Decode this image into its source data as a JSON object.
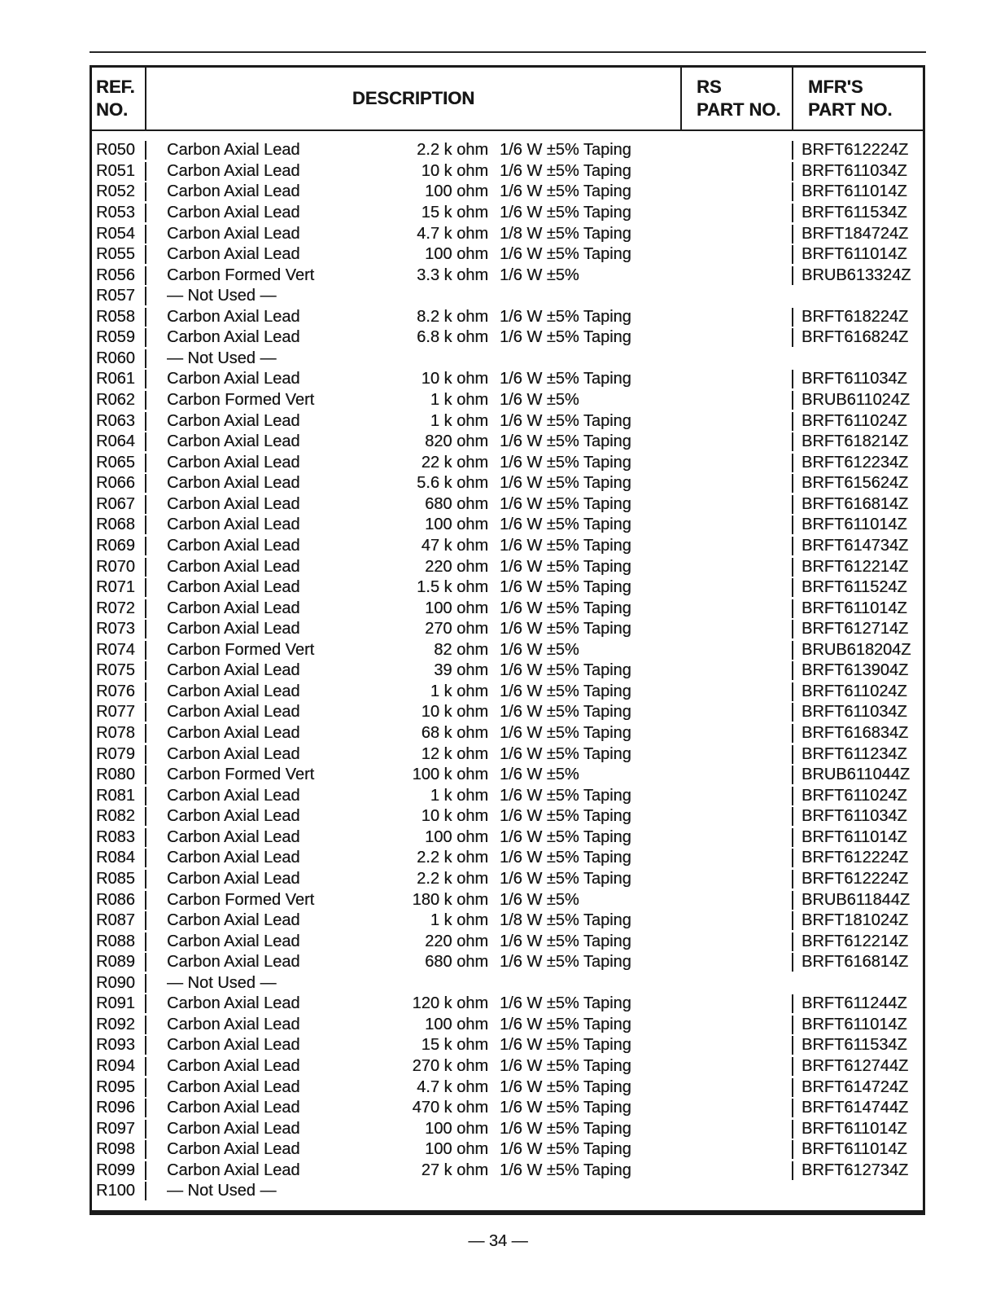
{
  "page": {
    "footer": "— 34 —"
  },
  "table": {
    "headers": {
      "ref_line1": "REF.",
      "ref_line2": "NO.",
      "description": "DESCRIPTION",
      "rs_line1": "RS",
      "rs_line2": "PART NO.",
      "mfr_line1": "MFR'S",
      "mfr_line2": "PART NO."
    },
    "rows": [
      {
        "ref": "R050",
        "name": "Carbon Axial Lead",
        "value": "2.2 k ohm",
        "spec": "1/6 W ±5% Taping",
        "rs": "",
        "mfr": "BRFT612224Z"
      },
      {
        "ref": "R051",
        "name": "Carbon Axial Lead",
        "value": "10 k ohm",
        "spec": "1/6 W ±5% Taping",
        "rs": "",
        "mfr": "BRFT611034Z"
      },
      {
        "ref": "R052",
        "name": "Carbon Axial Lead",
        "value": "100 ohm",
        "spec": "1/6 W ±5% Taping",
        "rs": "",
        "mfr": "BRFT611014Z"
      },
      {
        "ref": "R053",
        "name": "Carbon Axial Lead",
        "value": "15 k ohm",
        "spec": "1/6 W ±5% Taping",
        "rs": "",
        "mfr": "BRFT611534Z"
      },
      {
        "ref": "R054",
        "name": "Carbon Axial Lead",
        "value": "4.7 k ohm",
        "spec": "1/8 W ±5% Taping",
        "rs": "",
        "mfr": "BRFT184724Z"
      },
      {
        "ref": "R055",
        "name": "Carbon Axial Lead",
        "value": "100 ohm",
        "spec": "1/6 W ±5% Taping",
        "rs": "",
        "mfr": "BRFT611014Z"
      },
      {
        "ref": "R056",
        "name": "Carbon Formed Vert",
        "value": "3.3 k ohm",
        "spec": "1/6 W ±5%",
        "rs": "",
        "mfr": "BRUB613324Z"
      },
      {
        "ref": "R057",
        "name": "— Not Used —",
        "value": "",
        "spec": "",
        "rs": "",
        "mfr": ""
      },
      {
        "ref": "R058",
        "name": "Carbon Axial Lead",
        "value": "8.2 k ohm",
        "spec": "1/6 W ±5% Taping",
        "rs": "",
        "mfr": "BRFT618224Z"
      },
      {
        "ref": "R059",
        "name": "Carbon Axial Lead",
        "value": "6.8 k ohm",
        "spec": "1/6 W ±5% Taping",
        "rs": "",
        "mfr": "BRFT616824Z"
      },
      {
        "ref": "R060",
        "name": "— Not Used —",
        "value": "",
        "spec": "",
        "rs": "",
        "mfr": ""
      },
      {
        "ref": "R061",
        "name": "Carbon Axial Lead",
        "value": "10 k ohm",
        "spec": "1/6 W ±5% Taping",
        "rs": "",
        "mfr": "BRFT611034Z"
      },
      {
        "ref": "R062",
        "name": "Carbon Formed Vert",
        "value": "1 k ohm",
        "spec": "1/6 W ±5%",
        "rs": "",
        "mfr": "BRUB611024Z"
      },
      {
        "ref": "R063",
        "name": "Carbon Axial Lead",
        "value": "1 k ohm",
        "spec": "1/6 W ±5% Taping",
        "rs": "",
        "mfr": "BRFT611024Z"
      },
      {
        "ref": "R064",
        "name": "Carbon Axial Lead",
        "value": "820 ohm",
        "spec": "1/6 W ±5% Taping",
        "rs": "",
        "mfr": "BRFT618214Z"
      },
      {
        "ref": "R065",
        "name": "Carbon Axial Lead",
        "value": "22 k ohm",
        "spec": "1/6 W ±5% Taping",
        "rs": "",
        "mfr": "BRFT612234Z"
      },
      {
        "ref": "R066",
        "name": "Carbon Axial Lead",
        "value": "5.6 k ohm",
        "spec": "1/6 W ±5% Taping",
        "rs": "",
        "mfr": "BRFT615624Z"
      },
      {
        "ref": "R067",
        "name": "Carbon Axial Lead",
        "value": "680 ohm",
        "spec": "1/6 W ±5% Taping",
        "rs": "",
        "mfr": "BRFT616814Z"
      },
      {
        "ref": "R068",
        "name": "Carbon Axial Lead",
        "value": "100 ohm",
        "spec": "1/6 W ±5% Taping",
        "rs": "",
        "mfr": "BRFT611014Z"
      },
      {
        "ref": "R069",
        "name": "Carbon Axial Lead",
        "value": "47 k ohm",
        "spec": "1/6 W ±5% Taping",
        "rs": "",
        "mfr": "BRFT614734Z"
      },
      {
        "ref": "R070",
        "name": "Carbon Axial Lead",
        "value": "220 ohm",
        "spec": "1/6 W ±5% Taping",
        "rs": "",
        "mfr": "BRFT612214Z"
      },
      {
        "ref": "R071",
        "name": "Carbon Axial Lead",
        "value": "1.5 k ohm",
        "spec": "1/6 W ±5% Taping",
        "rs": "",
        "mfr": "BRFT611524Z"
      },
      {
        "ref": "R072",
        "name": "Carbon Axial Lead",
        "value": "100 ohm",
        "spec": "1/6 W ±5% Taping",
        "rs": "",
        "mfr": "BRFT611014Z"
      },
      {
        "ref": "R073",
        "name": "Carbon Axial Lead",
        "value": "270 ohm",
        "spec": "1/6 W ±5% Taping",
        "rs": "",
        "mfr": "BRFT612714Z"
      },
      {
        "ref": "R074",
        "name": "Carbon Formed Vert",
        "value": "82 ohm",
        "spec": "1/6 W ±5%",
        "rs": "",
        "mfr": "BRUB618204Z"
      },
      {
        "ref": "R075",
        "name": "Carbon Axial Lead",
        "value": "39 ohm",
        "spec": "1/6 W ±5% Taping",
        "rs": "",
        "mfr": "BRFT613904Z"
      },
      {
        "ref": "R076",
        "name": "Carbon Axial Lead",
        "value": "1 k ohm",
        "spec": "1/6 W ±5% Taping",
        "rs": "",
        "mfr": "BRFT611024Z"
      },
      {
        "ref": "R077",
        "name": "Carbon Axial Lead",
        "value": "10 k ohm",
        "spec": "1/6 W ±5% Taping",
        "rs": "",
        "mfr": "BRFT611034Z"
      },
      {
        "ref": "R078",
        "name": "Carbon Axial Lead",
        "value": "68 k ohm",
        "spec": "1/6 W ±5% Taping",
        "rs": "",
        "mfr": "BRFT616834Z"
      },
      {
        "ref": "R079",
        "name": "Carbon Axial Lead",
        "value": "12 k ohm",
        "spec": "1/6 W ±5% Taping",
        "rs": "",
        "mfr": "BRFT611234Z"
      },
      {
        "ref": "R080",
        "name": "Carbon Formed Vert",
        "value": "100 k ohm",
        "spec": "1/6 W ±5%",
        "rs": "",
        "mfr": "BRUB611044Z"
      },
      {
        "ref": "R081",
        "name": "Carbon Axial Lead",
        "value": "1 k ohm",
        "spec": "1/6 W ±5% Taping",
        "rs": "",
        "mfr": "BRFT611024Z"
      },
      {
        "ref": "R082",
        "name": "Carbon Axial Lead",
        "value": "10 k ohm",
        "spec": "1/6 W ±5% Taping",
        "rs": "",
        "mfr": "BRFT611034Z"
      },
      {
        "ref": "R083",
        "name": "Carbon Axial Lead",
        "value": "100 ohm",
        "spec": "1/6 W ±5% Taping",
        "rs": "",
        "mfr": "BRFT611014Z"
      },
      {
        "ref": "R084",
        "name": "Carbon Axial Lead",
        "value": "2.2 k ohm",
        "spec": "1/6 W ±5% Taping",
        "rs": "",
        "mfr": "BRFT612224Z"
      },
      {
        "ref": "R085",
        "name": "Carbon Axial Lead",
        "value": "2.2 k ohm",
        "spec": "1/6 W ±5% Taping",
        "rs": "",
        "mfr": "BRFT612224Z"
      },
      {
        "ref": "R086",
        "name": "Carbon Formed Vert",
        "value": "180 k ohm",
        "spec": "1/6 W ±5%",
        "rs": "",
        "mfr": "BRUB611844Z"
      },
      {
        "ref": "R087",
        "name": "Carbon Axial Lead",
        "value": "1 k ohm",
        "spec": "1/8 W ±5% Taping",
        "rs": "",
        "mfr": "BRFT181024Z"
      },
      {
        "ref": "R088",
        "name": "Carbon Axial Lead",
        "value": "220 ohm",
        "spec": "1/6 W ±5% Taping",
        "rs": "",
        "mfr": "BRFT612214Z"
      },
      {
        "ref": "R089",
        "name": "Carbon Axial Lead",
        "value": "680 ohm",
        "spec": "1/6 W ±5% Taping",
        "rs": "",
        "mfr": "BRFT616814Z"
      },
      {
        "ref": "R090",
        "name": "— Not Used —",
        "value": "",
        "spec": "",
        "rs": "",
        "mfr": ""
      },
      {
        "ref": "R091",
        "name": "Carbon Axial Lead",
        "value": "120 k ohm",
        "spec": "1/6 W ±5% Taping",
        "rs": "",
        "mfr": "BRFT611244Z"
      },
      {
        "ref": "R092",
        "name": "Carbon Axial Lead",
        "value": "100 ohm",
        "spec": "1/6 W ±5% Taping",
        "rs": "",
        "mfr": "BRFT611014Z"
      },
      {
        "ref": "R093",
        "name": "Carbon Axial Lead",
        "value": "15 k ohm",
        "spec": "1/6 W ±5% Taping",
        "rs": "",
        "mfr": "BRFT611534Z"
      },
      {
        "ref": "R094",
        "name": "Carbon Axial Lead",
        "value": "270 k ohm",
        "spec": "1/6 W ±5% Taping",
        "rs": "",
        "mfr": "BRFT612744Z"
      },
      {
        "ref": "R095",
        "name": "Carbon Axial Lead",
        "value": "4.7 k ohm",
        "spec": "1/6 W ±5% Taping",
        "rs": "",
        "mfr": "BRFT614724Z"
      },
      {
        "ref": "R096",
        "name": "Carbon Axial Lead",
        "value": "470 k ohm",
        "spec": "1/6 W ±5% Taping",
        "rs": "",
        "mfr": "BRFT614744Z"
      },
      {
        "ref": "R097",
        "name": "Carbon Axial Lead",
        "value": "100 ohm",
        "spec": "1/6 W ±5% Taping",
        "rs": "",
        "mfr": "BRFT611014Z"
      },
      {
        "ref": "R098",
        "name": "Carbon Axial Lead",
        "value": "100 ohm",
        "spec": "1/6 W ±5% Taping",
        "rs": "",
        "mfr": "BRFT611014Z"
      },
      {
        "ref": "R099",
        "name": "Carbon Axial Lead",
        "value": "27 k ohm",
        "spec": "1/6 W ±5% Taping",
        "rs": "",
        "mfr": "BRFT612734Z"
      },
      {
        "ref": "R100",
        "name": "— Not Used —",
        "value": "",
        "spec": "",
        "rs": "",
        "mfr": ""
      }
    ]
  }
}
